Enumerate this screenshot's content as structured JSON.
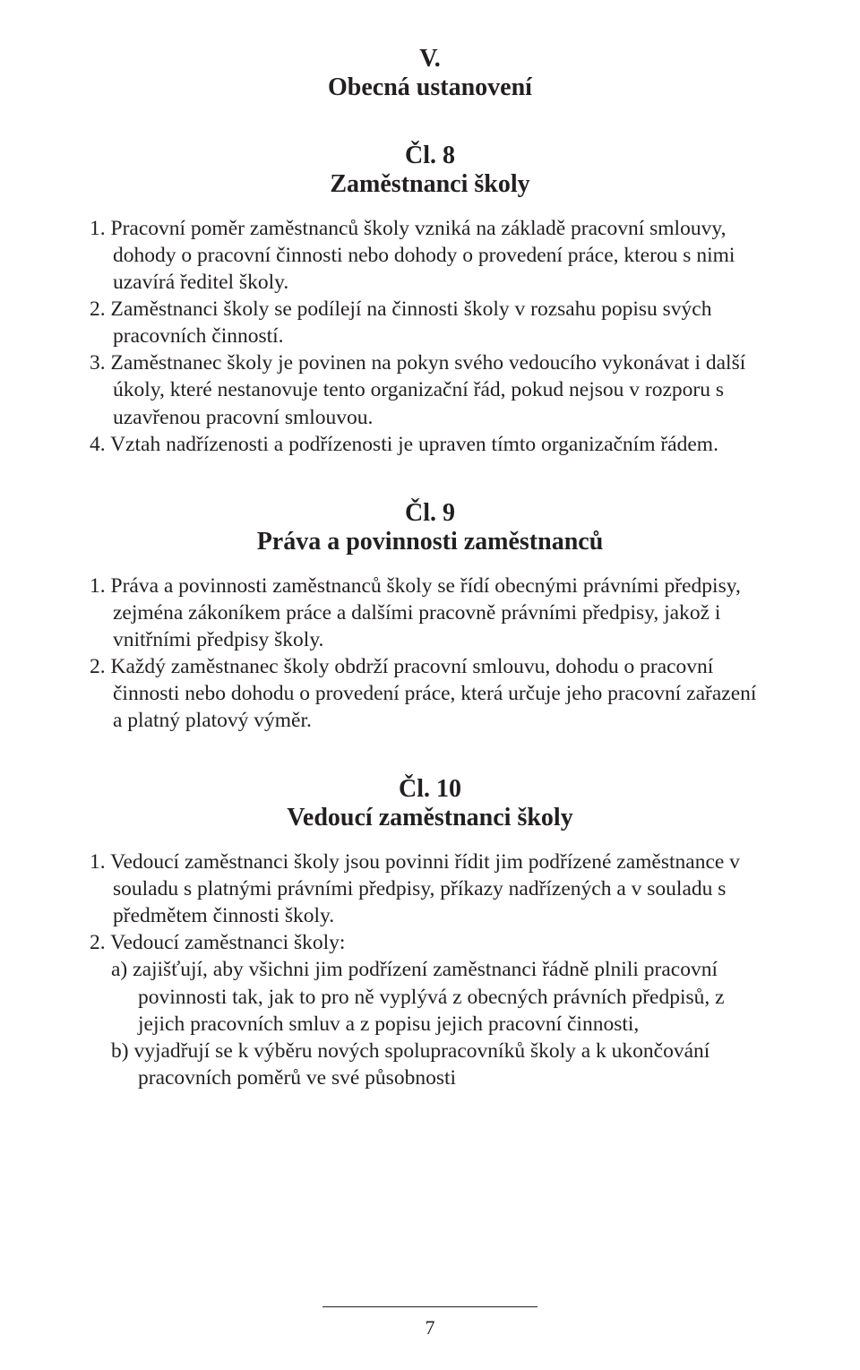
{
  "colors": {
    "background": "#ffffff",
    "text": "#231f20",
    "rule": "#231f20"
  },
  "typography": {
    "family": "Book Antiqua / Palatino (serif)",
    "body_fontsize_pt": 18,
    "heading_fontsize_pt": 21,
    "line_height": 1.28
  },
  "page_number": "7",
  "section": {
    "number": "V.",
    "title": "Obecná ustanovení"
  },
  "articles": [
    {
      "number": "Čl. 8",
      "title": "Zaměstnanci školy",
      "items": [
        {
          "num": "1.",
          "text": "Pracovní poměr zaměstnanců školy vzniká na základě pracovní smlouvy, dohody o pracovní činnosti nebo dohody o provedení práce, kterou s nimi uzavírá ředitel školy."
        },
        {
          "num": "2.",
          "text": "Zaměstnanci školy se podílejí na činnosti školy v rozsahu popisu svých pracovních činností."
        },
        {
          "num": "3.",
          "text": "Zaměstnanec školy je povinen na pokyn svého vedoucího vykonávat i další úkoly, které nestanovuje tento organizační řád, pokud nejsou v rozporu s uzavřenou pracovní smlouvou."
        },
        {
          "num": "4.",
          "text": "Vztah nadřízenosti a podřízenosti je upraven tímto organizačním řádem."
        }
      ]
    },
    {
      "number": "Čl. 9",
      "title": "Práva a povinnosti zaměstnanců",
      "items": [
        {
          "num": "1.",
          "text": "Práva a povinnosti zaměstnanců školy se řídí obecnými právními předpisy, zejména zákoníkem práce a dalšími pracovně právními předpisy, jakož i vnitřními předpisy školy."
        },
        {
          "num": "2.",
          "text": "Každý zaměstnanec školy obdrží pracovní smlouvu, dohodu o pracovní činnosti nebo dohodu o provedení práce, která určuje jeho pracovní zařazení a platný platový výměr."
        }
      ]
    },
    {
      "number": "Čl. 10",
      "title": "Vedoucí zaměstnanci školy",
      "items": [
        {
          "num": "1.",
          "text": "Vedoucí zaměstnanci školy jsou povinni řídit jim podřízené zaměstnance v souladu s platnými právními předpisy, příkazy nadřízených a v souladu s předmětem činnosti školy."
        },
        {
          "num": "2.",
          "text": "Vedoucí zaměstnanci školy:",
          "subitems": [
            {
              "letter": "a)",
              "text": "zajišťují, aby všichni jim podřízení zaměstnanci řádně plnili pracovní povinnosti tak, jak to pro ně vyplývá z obecných právních předpisů, z jejich pracovních smluv a z popisu jejich pracovní činnosti,"
            },
            {
              "letter": "b)",
              "text": "vyjadřují se k výběru nových spolupracovníků školy a k ukončování pracovních poměrů ve své působnosti"
            }
          ]
        }
      ]
    }
  ]
}
